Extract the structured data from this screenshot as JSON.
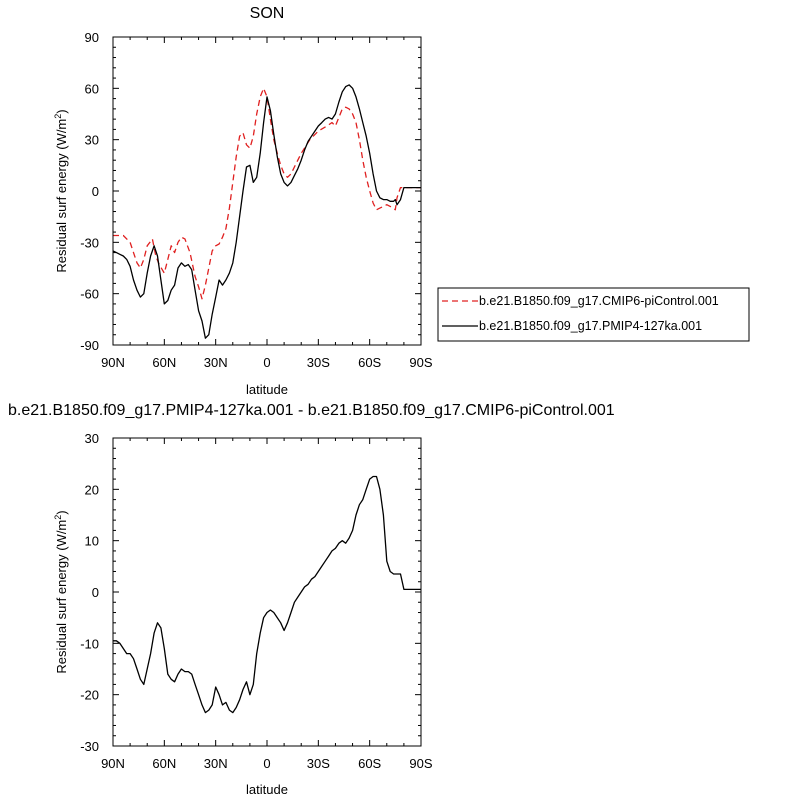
{
  "chart_data": [
    {
      "type": "line",
      "title": "SON",
      "xlabel": "latitude",
      "ylabel_main": "Residual surf energy (W/m",
      "ylabel_sup": "2",
      "ylabel_close": ")",
      "xlim": [
        90,
        -90
      ],
      "ylim": [
        -90,
        90
      ],
      "xticks": [
        90,
        60,
        30,
        0,
        -30,
        -60,
        -90
      ],
      "xtick_labels": [
        "90N",
        "60N",
        "30N",
        "0",
        "30S",
        "60S",
        "90S"
      ],
      "yticks": [
        -90,
        -60,
        -30,
        0,
        30,
        60,
        90
      ],
      "ytick_labels": [
        "-90",
        "-60",
        "-30",
        "0",
        "30",
        "60",
        "90"
      ],
      "legend_position": "right",
      "grid": false,
      "series": [
        {
          "name": "b.e21.B1850.f09_g17.CMIP6-piControl.001",
          "color": "#e02020",
          "dash": "dashed",
          "x": [
            90,
            86,
            84,
            80,
            78,
            76,
            74,
            72,
            70,
            67,
            65,
            63,
            60,
            58,
            56,
            54,
            52,
            50,
            48,
            45,
            42,
            40,
            38,
            36,
            34,
            32,
            30,
            28,
            26,
            24,
            22,
            20,
            18,
            16,
            14,
            12,
            10,
            8,
            6,
            4,
            2,
            0,
            -2,
            -4,
            -6,
            -8,
            -10,
            -12,
            -14,
            -16,
            -20,
            -25,
            -30,
            -35,
            -38,
            -40,
            -42,
            -44,
            -46,
            -48,
            -50,
            -52,
            -54,
            -56,
            -58,
            -60,
            -62,
            -64,
            -66,
            -68,
            -70,
            -72,
            -74,
            -75,
            -76,
            -78,
            -80,
            -82,
            -85,
            -88,
            -90
          ],
          "y": [
            -26,
            -26,
            -26,
            -30,
            -36,
            -42,
            -45,
            -40,
            -32,
            -28,
            -38,
            -43,
            -48,
            -40,
            -32,
            -36,
            -30,
            -27,
            -28,
            -36,
            -50,
            -56,
            -63,
            -55,
            -45,
            -35,
            -32,
            -31,
            -27,
            -22,
            -10,
            5,
            20,
            32,
            34,
            27,
            25,
            32,
            45,
            55,
            60,
            55,
            42,
            30,
            22,
            15,
            10,
            8,
            10,
            14,
            22,
            30,
            35,
            38,
            40,
            38,
            43,
            48,
            49,
            48,
            45,
            40,
            30,
            18,
            8,
            0,
            -7,
            -11,
            -10,
            -9,
            -8,
            -9,
            -10,
            -11,
            -4,
            2,
            2,
            2,
            2,
            2,
            2
          ]
        },
        {
          "name": "b.e21.B1850.f09_g17.PMIP4-127ka.001",
          "color": "#000000",
          "dash": "solid",
          "x": [
            90,
            88,
            86,
            84,
            82,
            80,
            78,
            76,
            74,
            72,
            70,
            68,
            66,
            64,
            62,
            60,
            58,
            56,
            54,
            52,
            50,
            48,
            46,
            44,
            42,
            40,
            38,
            36,
            34,
            32,
            30,
            28,
            26,
            24,
            22,
            20,
            18,
            16,
            14,
            12,
            10,
            8,
            6,
            4,
            2,
            0,
            -2,
            -4,
            -6,
            -8,
            -10,
            -12,
            -14,
            -16,
            -18,
            -20,
            -22,
            -24,
            -26,
            -28,
            -30,
            -32,
            -34,
            -36,
            -38,
            -40,
            -42,
            -44,
            -46,
            -48,
            -50,
            -52,
            -54,
            -56,
            -58,
            -60,
            -62,
            -64,
            -66,
            -68,
            -70,
            -72,
            -74,
            -75,
            -76,
            -78,
            -80,
            -82,
            -85,
            -88,
            -90
          ],
          "y": [
            -35,
            -36,
            -37,
            -38,
            -40,
            -44,
            -52,
            -58,
            -62,
            -60,
            -48,
            -38,
            -32,
            -38,
            -52,
            -66,
            -64,
            -58,
            -55,
            -45,
            -42,
            -44,
            -43,
            -46,
            -58,
            -70,
            -76,
            -86,
            -84,
            -72,
            -62,
            -52,
            -55,
            -52,
            -48,
            -42,
            -30,
            -15,
            0,
            14,
            15,
            5,
            8,
            22,
            40,
            55,
            47,
            33,
            20,
            10,
            5,
            3,
            5,
            9,
            13,
            18,
            24,
            29,
            32,
            35,
            38,
            40,
            42,
            43,
            42,
            45,
            52,
            58,
            61,
            62,
            60,
            55,
            48,
            40,
            32,
            22,
            10,
            0,
            -4,
            -5,
            -5,
            -6,
            -6,
            -5,
            -8,
            -5,
            2,
            2,
            2,
            2,
            2
          ]
        }
      ]
    },
    {
      "type": "line",
      "title": "b.e21.B1850.f09_g17.PMIP4-127ka.001 - b.e21.B1850.f09_g17.CMIP6-piControl.001",
      "xlabel": "latitude",
      "ylabel_main": "Residual surf energy (W/m",
      "ylabel_sup": "2",
      "ylabel_close": ")",
      "xlim": [
        90,
        -90
      ],
      "ylim": [
        -30,
        30
      ],
      "xticks": [
        90,
        60,
        30,
        0,
        -30,
        -60,
        -90
      ],
      "xtick_labels": [
        "90N",
        "60N",
        "30N",
        "0",
        "30S",
        "60S",
        "90S"
      ],
      "yticks": [
        -30,
        -20,
        -10,
        0,
        10,
        20,
        30
      ],
      "ytick_labels": [
        "-30",
        "-20",
        "-10",
        "0",
        "10",
        "20",
        "30"
      ],
      "grid": false,
      "series": [
        {
          "color": "#000000",
          "dash": "solid",
          "x": [
            90,
            88,
            86,
            84,
            82,
            80,
            78,
            76,
            74,
            72,
            70,
            68,
            66,
            64,
            62,
            60,
            58,
            56,
            54,
            52,
            50,
            48,
            46,
            44,
            42,
            40,
            38,
            36,
            34,
            32,
            30,
            28,
            26,
            24,
            22,
            20,
            18,
            16,
            14,
            12,
            10,
            8,
            6,
            4,
            2,
            0,
            -2,
            -4,
            -6,
            -8,
            -10,
            -12,
            -14,
            -16,
            -18,
            -20,
            -22,
            -24,
            -26,
            -28,
            -30,
            -32,
            -34,
            -36,
            -38,
            -40,
            -42,
            -44,
            -46,
            -48,
            -50,
            -52,
            -54,
            -56,
            -58,
            -60,
            -62,
            -64,
            -66,
            -68,
            -70,
            -72,
            -74,
            -75,
            -76,
            -78,
            -80,
            -82,
            -85,
            -88,
            -90
          ],
          "y": [
            -9.5,
            -9.5,
            -10,
            -11,
            -12,
            -12,
            -13,
            -15,
            -17,
            -18,
            -15,
            -12,
            -8,
            -6,
            -7,
            -11,
            -16,
            -17,
            -17.5,
            -16,
            -15,
            -15.5,
            -15.5,
            -16,
            -18,
            -20,
            -22,
            -23.5,
            -23,
            -22,
            -18.5,
            -20,
            -22,
            -21.5,
            -23,
            -23.5,
            -22.5,
            -21,
            -19,
            -17.5,
            -20,
            -18,
            -12,
            -8,
            -5,
            -4,
            -3.5,
            -4,
            -5,
            -6,
            -7.5,
            -6,
            -4,
            -2,
            -1,
            0,
            1,
            1.5,
            2.5,
            3,
            4,
            5,
            6,
            7,
            8,
            8.5,
            9.5,
            10,
            9.5,
            10.5,
            12,
            15,
            17,
            18,
            20,
            22,
            22.5,
            22.5,
            20,
            15,
            6,
            4,
            3.5,
            3.5,
            3.5,
            3.5,
            0.5,
            0.5,
            0.5,
            0.5,
            0.5
          ]
        }
      ]
    }
  ]
}
